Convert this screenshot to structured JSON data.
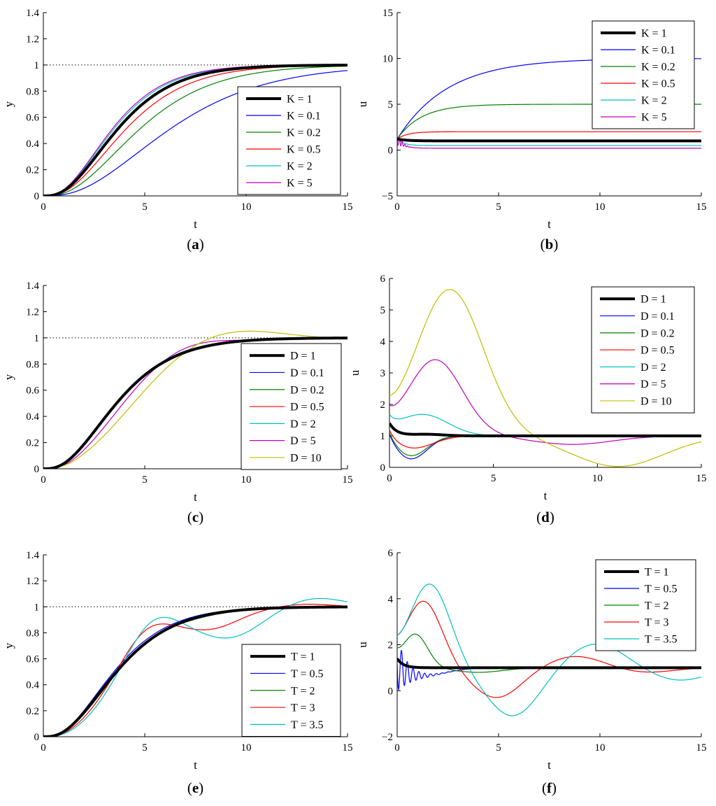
{
  "chart_data": [
    {
      "id": "a",
      "type": "line",
      "caption": "a",
      "xlabel": "t",
      "ylabel": "y",
      "xlim": [
        0,
        15
      ],
      "ylim": [
        0,
        1.4
      ],
      "xticks": [
        0,
        5,
        10,
        15
      ],
      "yticks": [
        0,
        0.2,
        0.4,
        0.6,
        0.8,
        1,
        1.2,
        1.4
      ],
      "reference_line": 1,
      "legend": "right",
      "series": [
        {
          "name": "K = 1",
          "color": "#000000",
          "thick": true,
          "shape": {
            "kind": "resp",
            "tau": 1.35,
            "ss": 1.0
          }
        },
        {
          "name": "K = 0.1",
          "color": "#0000ff",
          "shape": {
            "kind": "resp",
            "tau": 2.3,
            "ss": 1.0
          }
        },
        {
          "name": "K = 0.2",
          "color": "#008000",
          "shape": {
            "kind": "resp",
            "tau": 1.75,
            "ss": 1.0
          }
        },
        {
          "name": "K = 0.5",
          "color": "#ff0000",
          "shape": {
            "kind": "resp",
            "tau": 1.5,
            "ss": 1.0
          }
        },
        {
          "name": "K = 2",
          "color": "#00bfbf",
          "shape": {
            "kind": "resp",
            "tau": 1.28,
            "ss": 1.0
          }
        },
        {
          "name": "K = 5",
          "color": "#bf00bf",
          "shape": {
            "kind": "resp",
            "tau": 1.25,
            "ss": 1.0
          }
        }
      ]
    },
    {
      "id": "b",
      "type": "line",
      "caption": "b",
      "xlabel": "t",
      "ylabel": "u",
      "xlim": [
        0,
        15
      ],
      "ylim": [
        -5,
        15
      ],
      "xticks": [
        0,
        5,
        10,
        15
      ],
      "yticks": [
        -5,
        0,
        5,
        10,
        15
      ],
      "legend": "top-right",
      "series": [
        {
          "name": "K = 1",
          "color": "#000000",
          "thick": true,
          "shape": {
            "kind": "ctrl",
            "ss": 1.0,
            "u0": 1.2,
            "tau": 0.5
          }
        },
        {
          "name": "K = 0.1",
          "color": "#0000ff",
          "shape": {
            "kind": "ctrl",
            "ss": 10.0,
            "u0": 1.2,
            "tau": 2.5
          }
        },
        {
          "name": "K = 0.2",
          "color": "#008000",
          "shape": {
            "kind": "ctrl",
            "ss": 5.0,
            "u0": 1.2,
            "tau": 1.2
          }
        },
        {
          "name": "K = 0.5",
          "color": "#ff0000",
          "shape": {
            "kind": "ctrl",
            "ss": 2.0,
            "u0": 1.2,
            "tau": 0.5
          }
        },
        {
          "name": "K = 2",
          "color": "#00bfbf",
          "shape": {
            "kind": "ctrl",
            "ss": 0.5,
            "u0": 1.3,
            "tau": 0.3
          }
        },
        {
          "name": "K = 5",
          "color": "#bf00bf",
          "shape": {
            "kind": "ctrl",
            "ss": 0.2,
            "u0": 1.3,
            "tau": 0.3,
            "osc": 0.9,
            "ow": 45,
            "od": 5
          }
        }
      ]
    },
    {
      "id": "c",
      "type": "line",
      "caption": "c",
      "xlabel": "t",
      "ylabel": "y",
      "xlim": [
        0,
        15
      ],
      "ylim": [
        0,
        1.4
      ],
      "xticks": [
        0,
        5,
        10,
        15
      ],
      "yticks": [
        0,
        0.2,
        0.4,
        0.6,
        0.8,
        1,
        1.2,
        1.4
      ],
      "reference_line": 1,
      "legend": "right",
      "series": [
        {
          "name": "D = 1",
          "color": "#000000",
          "thick": true,
          "shape": {
            "kind": "resp",
            "tau": 1.35,
            "ss": 1.0
          }
        },
        {
          "name": "D = 0.1",
          "color": "#0000ff",
          "shape": {
            "kind": "resp",
            "tau": 1.33,
            "ss": 1.0
          }
        },
        {
          "name": "D = 0.2",
          "color": "#008000",
          "shape": {
            "kind": "resp",
            "tau": 1.33,
            "ss": 1.0
          }
        },
        {
          "name": "D = 0.5",
          "color": "#ff0000",
          "shape": {
            "kind": "resp",
            "tau": 1.34,
            "ss": 1.0
          }
        },
        {
          "name": "D = 2",
          "color": "#00bfbf",
          "shape": {
            "kind": "resp",
            "tau": 1.38,
            "ss": 1.0,
            "bump": [
              0.02,
              6.5,
              1.6
            ]
          }
        },
        {
          "name": "D = 5",
          "color": "#bf00bf",
          "shape": {
            "kind": "resp",
            "tau": 1.6,
            "ss": 1.0,
            "bump": [
              0.11,
              6.6,
              2.2
            ]
          }
        },
        {
          "name": "D = 10",
          "color": "#bfbf00",
          "shape": {
            "kind": "resp",
            "tau": 2.0,
            "ss": 1.0,
            "bump": [
              0.22,
              7.9,
              3.1
            ]
          }
        }
      ]
    },
    {
      "id": "d",
      "type": "line",
      "caption": "d",
      "xlabel": "t",
      "ylabel": "u",
      "xlim": [
        0,
        15
      ],
      "ylim": [
        0,
        6
      ],
      "xticks": [
        0,
        5,
        10,
        15
      ],
      "yticks": [
        0,
        1,
        2,
        3,
        4,
        5,
        6
      ],
      "legend": "top-right",
      "series": [
        {
          "name": "D = 1",
          "color": "#000000",
          "thick": true,
          "shape": {
            "kind": "ctrl",
            "ss": 1.0,
            "u0": 1.4,
            "tau": 0.35,
            "bump": [
              0.05,
              1.8,
              0.8
            ]
          }
        },
        {
          "name": "D = 0.1",
          "color": "#0000ff",
          "shape": {
            "kind": "ctrl",
            "ss": 1.0,
            "u0": 1.4,
            "tau": 0.35,
            "bump": [
              -0.75,
              1.0,
              0.8
            ]
          }
        },
        {
          "name": "D = 0.2",
          "color": "#008000",
          "shape": {
            "kind": "ctrl",
            "ss": 1.0,
            "u0": 1.4,
            "tau": 0.35,
            "bump": [
              -0.65,
              1.0,
              0.8
            ]
          }
        },
        {
          "name": "D = 0.5",
          "color": "#ff0000",
          "shape": {
            "kind": "ctrl",
            "ss": 1.0,
            "u0": 1.4,
            "tau": 0.35,
            "bump": [
              -0.4,
              1.1,
              1.0
            ]
          }
        },
        {
          "name": "D = 2",
          "color": "#00bfbf",
          "shape": {
            "kind": "ctrl",
            "ss": 1.0,
            "u0": 1.4,
            "tau": 0.35,
            "bump": [
              0.68,
              1.6,
              1.2
            ]
          }
        },
        {
          "name": "D = 5",
          "color": "#bf00bf",
          "shape": {
            "kind": "ctrl",
            "ss": 1.0,
            "u0": 1.4,
            "tau": 0.35,
            "bump": [
              2.42,
              2.2,
              1.3
            ],
            "bump2": [
              -0.27,
              8.8,
              1.9
            ]
          }
        },
        {
          "name": "D = 10",
          "color": "#bfbf00",
          "shape": {
            "kind": "ctrl",
            "ss": 1.0,
            "u0": 1.4,
            "tau": 0.35,
            "bump": [
              4.65,
              2.9,
              1.6
            ],
            "bump2": [
              -0.97,
              11.0,
              2.2
            ]
          }
        }
      ]
    },
    {
      "id": "e",
      "type": "line",
      "caption": "e",
      "xlabel": "t",
      "ylabel": "y",
      "xlim": [
        0,
        15
      ],
      "ylim": [
        0,
        1.4
      ],
      "xticks": [
        0,
        5,
        10,
        15
      ],
      "yticks": [
        0,
        0.2,
        0.4,
        0.6,
        0.8,
        1,
        1.2,
        1.4
      ],
      "reference_line": 1,
      "legend": "bottom-right",
      "series": [
        {
          "name": "T = 1",
          "color": "#000000",
          "thick": true,
          "shape": {
            "kind": "resp",
            "tau": 1.35,
            "ss": 1.0
          }
        },
        {
          "name": "T = 0.5",
          "color": "#0000ff",
          "shape": {
            "kind": "resp",
            "tau": 1.3,
            "ss": 1.0
          }
        },
        {
          "name": "T = 2",
          "color": "#008000",
          "shape": {
            "kind": "resp",
            "tau": 1.4,
            "ss": 1.0,
            "bump": [
              0.03,
              5.0,
              1.1
            ]
          }
        },
        {
          "name": "T = 3",
          "color": "#ff0000",
          "shape": {
            "kind": "resp",
            "tau": 1.55,
            "ss": 1.0,
            "bump": [
              0.19,
              5.0,
              1.2
            ],
            "bump2": [
              -0.08,
              8.5,
              1.2
            ],
            "bump3": [
              0.03,
              12.8,
              1.4
            ]
          }
        },
        {
          "name": "T = 3.5",
          "color": "#00bfbf",
          "shape": {
            "kind": "resp",
            "tau": 1.7,
            "ss": 1.0,
            "bump": [
              0.28,
              5.3,
              1.3
            ],
            "bump2": [
              -0.15,
              9.4,
              1.4
            ],
            "bump3": [
              0.08,
              13.4,
              1.5
            ]
          }
        }
      ]
    },
    {
      "id": "f",
      "type": "line",
      "caption": "f",
      "xlabel": "t",
      "ylabel": "u",
      "xlim": [
        0,
        15
      ],
      "ylim": [
        -2,
        6
      ],
      "xticks": [
        0,
        5,
        10,
        15
      ],
      "yticks": [
        -2,
        0,
        2,
        4,
        6
      ],
      "legend": "top-right",
      "series": [
        {
          "name": "T = 1",
          "color": "#000000",
          "thick": true,
          "shape": {
            "kind": "ctrl",
            "ss": 1.0,
            "u0": 1.4,
            "tau": 0.3
          }
        },
        {
          "name": "T = 0.5",
          "color": "#0000ff",
          "shape": {
            "kind": "ctrl",
            "ss": 1.0,
            "u0": 1.4,
            "tau": 0.3,
            "osc": 1.2,
            "ow": 22,
            "od": 1.8,
            "bump": [
              -0.35,
              1.2,
              1.2
            ]
          }
        },
        {
          "name": "T = 2",
          "color": "#008000",
          "shape": {
            "kind": "ctrl",
            "ss": 1.0,
            "u0": 1.4,
            "tau": 0.3,
            "bump": [
              1.45,
              0.9,
              0.6
            ],
            "bump2": [
              -0.2,
              4.0,
              1.2
            ]
          }
        },
        {
          "name": "T = 3",
          "color": "#ff0000",
          "shape": {
            "kind": "ctrl",
            "ss": 1.0,
            "u0": 1.4,
            "tau": 0.3,
            "bump": [
              2.9,
              1.3,
              0.9
            ],
            "bump2": [
              -1.3,
              4.9,
              1.2
            ],
            "bump3": [
              0.5,
              8.8,
              1.3
            ],
            "bump4": [
              -0.2,
              12.3,
              1.3
            ]
          }
        },
        {
          "name": "T = 3.5",
          "color": "#00bfbf",
          "shape": {
            "kind": "ctrl",
            "ss": 1.0,
            "u0": 1.4,
            "tau": 0.3,
            "bump": [
              3.65,
              1.6,
              1.0
            ],
            "bump2": [
              -2.1,
              5.7,
              1.3
            ],
            "bump3": [
              1.05,
              9.8,
              1.4
            ],
            "bump4": [
              -0.55,
              13.9,
              1.4
            ]
          }
        }
      ]
    }
  ]
}
